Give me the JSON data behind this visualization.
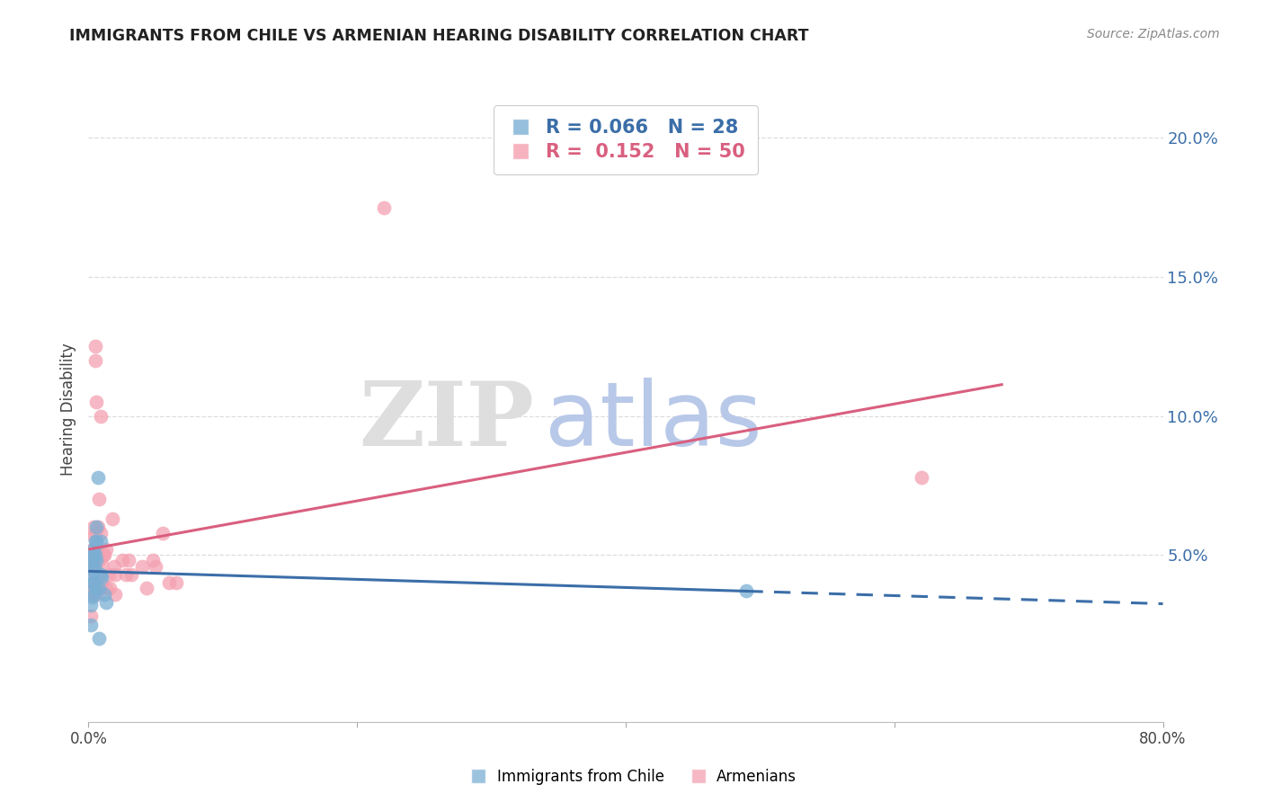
{
  "title": "IMMIGRANTS FROM CHILE VS ARMENIAN HEARING DISABILITY CORRELATION CHART",
  "source": "Source: ZipAtlas.com",
  "ylabel": "Hearing Disability",
  "xlim": [
    0.0,
    0.8
  ],
  "ylim": [
    -0.01,
    0.215
  ],
  "yticks": [
    0.0,
    0.05,
    0.1,
    0.15,
    0.2
  ],
  "ytick_labels": [
    "",
    "5.0%",
    "10.0%",
    "15.0%",
    "20.0%"
  ],
  "xtick_positions": [
    0.0,
    0.2,
    0.4,
    0.6,
    0.8
  ],
  "xtick_labels": [
    "0.0%",
    "",
    "",
    "",
    "80.0%"
  ],
  "legend_blue_R": "0.066",
  "legend_blue_N": "28",
  "legend_pink_R": "0.152",
  "legend_pink_N": "50",
  "legend_blue_label": "Immigrants from Chile",
  "legend_pink_label": "Armenians",
  "blue_scatter_x": [
    0.001,
    0.002,
    0.002,
    0.002,
    0.003,
    0.003,
    0.003,
    0.003,
    0.004,
    0.004,
    0.004,
    0.004,
    0.005,
    0.005,
    0.005,
    0.005,
    0.006,
    0.006,
    0.006,
    0.007,
    0.008,
    0.008,
    0.009,
    0.009,
    0.01,
    0.012,
    0.013,
    0.49
  ],
  "blue_scatter_y": [
    0.043,
    0.048,
    0.032,
    0.025,
    0.05,
    0.045,
    0.04,
    0.035,
    0.052,
    0.048,
    0.04,
    0.036,
    0.055,
    0.05,
    0.045,
    0.038,
    0.06,
    0.055,
    0.048,
    0.078,
    0.038,
    0.02,
    0.055,
    0.043,
    0.042,
    0.036,
    0.033,
    0.037
  ],
  "pink_scatter_x": [
    0.001,
    0.001,
    0.002,
    0.002,
    0.002,
    0.003,
    0.003,
    0.003,
    0.004,
    0.004,
    0.004,
    0.004,
    0.005,
    0.005,
    0.005,
    0.005,
    0.006,
    0.006,
    0.006,
    0.007,
    0.007,
    0.008,
    0.008,
    0.009,
    0.009,
    0.01,
    0.01,
    0.011,
    0.012,
    0.013,
    0.013,
    0.015,
    0.016,
    0.018,
    0.019,
    0.02,
    0.02,
    0.025,
    0.028,
    0.03,
    0.032,
    0.04,
    0.043,
    0.048,
    0.05,
    0.055,
    0.06,
    0.065,
    0.22,
    0.62
  ],
  "pink_scatter_y": [
    0.045,
    0.038,
    0.048,
    0.036,
    0.028,
    0.052,
    0.047,
    0.036,
    0.06,
    0.057,
    0.047,
    0.04,
    0.125,
    0.12,
    0.058,
    0.043,
    0.105,
    0.038,
    0.036,
    0.06,
    0.05,
    0.07,
    0.048,
    0.1,
    0.058,
    0.047,
    0.04,
    0.05,
    0.05,
    0.052,
    0.038,
    0.043,
    0.038,
    0.063,
    0.046,
    0.043,
    0.036,
    0.048,
    0.043,
    0.048,
    0.043,
    0.046,
    0.038,
    0.048,
    0.046,
    0.058,
    0.04,
    0.04,
    0.175,
    0.078
  ],
  "blue_color": "#7BAFD4",
  "pink_color": "#F4A0B0",
  "blue_line_color": "#3B6EA8",
  "pink_line_color": "#D95F7F",
  "blue_line_start_x": 0.001,
  "blue_line_end_solid_x": 0.49,
  "blue_line_end_dash_x": 0.8,
  "pink_line_start_x": 0.001,
  "pink_line_end_x": 0.68,
  "background_color": "#FFFFFF",
  "grid_color": "#DDDDDD",
  "title_color": "#222222",
  "source_color": "#888888",
  "yaxis_label_color": "#3B6EA8",
  "watermark_zip_color": "#DEDEDE",
  "watermark_atlas_color": "#B8C8E8"
}
